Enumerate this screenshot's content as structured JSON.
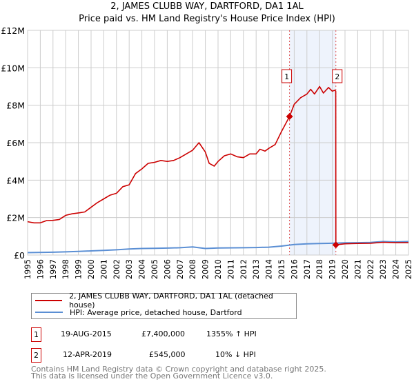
{
  "title": "2, JAMES CLUBB WAY, DARTFORD, DA1 1AL",
  "subtitle": "Price paid vs. HM Land Registry's House Price Index (HPI)",
  "chart_data": {
    "type": "line",
    "title": "2, JAMES CLUBB WAY, DARTFORD, DA1 1AL",
    "subtitle": "Price paid vs. HM Land Registry's House Price Index (HPI)",
    "xlim": [
      1995,
      2025
    ],
    "ylim": [
      0,
      12000000
    ],
    "ytick_values": [
      0,
      2000000,
      4000000,
      6000000,
      8000000,
      10000000,
      12000000
    ],
    "ytick_labels": [
      "£0",
      "£2M",
      "£4M",
      "£6M",
      "£8M",
      "£10M",
      "£12M"
    ],
    "xtick_labels": [
      "1995",
      "1996",
      "1997",
      "1998",
      "1999",
      "2000",
      "2001",
      "2002",
      "2003",
      "2004",
      "2005",
      "2006",
      "2007",
      "2008",
      "2009",
      "2010",
      "2011",
      "2012",
      "2013",
      "2014",
      "2015",
      "2016",
      "2017",
      "2018",
      "2019",
      "2020",
      "2021",
      "2022",
      "2023",
      "2024",
      "2025"
    ],
    "grid": true,
    "legend_placement": "below",
    "shaded_range": [
      2015.63,
      2019.28
    ],
    "series": [
      {
        "name": "2, JAMES CLUBB WAY, DARTFORD, DA1 1AL (detached house)",
        "color": "#cc0000",
        "x": [
          1995,
          1995.5,
          1996,
          1996.5,
          1997,
          1997.5,
          1998,
          1998.5,
          1999,
          1999.5,
          2000,
          2000.5,
          2001,
          2001.5,
          2002,
          2002.5,
          2003,
          2003.5,
          2004,
          2004.5,
          2005,
          2005.5,
          2006,
          2006.5,
          2007,
          2007.5,
          2008,
          2008.5,
          2009,
          2009.3,
          2009.7,
          2010,
          2010.5,
          2011,
          2011.5,
          2012,
          2012.5,
          2013,
          2013.3,
          2013.7,
          2014,
          2014.5,
          2015,
          2015.63,
          2016,
          2016.5,
          2017,
          2017.3,
          2017.6,
          2018,
          2018.3,
          2018.7,
          2019,
          2019.2,
          2019.27,
          2019.28,
          2020,
          2021,
          2022,
          2023,
          2024,
          2025
        ],
        "y": [
          1780000,
          1720000,
          1720000,
          1840000,
          1850000,
          1900000,
          2120000,
          2200000,
          2250000,
          2300000,
          2550000,
          2800000,
          3000000,
          3200000,
          3300000,
          3650000,
          3750000,
          4350000,
          4600000,
          4900000,
          4950000,
          5050000,
          5000000,
          5050000,
          5200000,
          5400000,
          5600000,
          6000000,
          5500000,
          4900000,
          4750000,
          5000000,
          5300000,
          5400000,
          5250000,
          5200000,
          5400000,
          5400000,
          5650000,
          5550000,
          5700000,
          5900000,
          6600000,
          7400000,
          8050000,
          8400000,
          8600000,
          8850000,
          8600000,
          9000000,
          8650000,
          8950000,
          8750000,
          8800000,
          8750000,
          545000,
          600000,
          620000,
          630000,
          680000,
          660000,
          660000
        ]
      },
      {
        "name": "HPI: Average price, detached house, Dartford",
        "color": "#5b8fd4",
        "x": [
          1995,
          1997,
          1998,
          1999,
          2000,
          2001,
          2002,
          2003,
          2004,
          2005,
          2006,
          2007,
          2008,
          2009,
          2010,
          2012,
          2013,
          2014,
          2015,
          2016,
          2017,
          2018,
          2019,
          2020,
          2021,
          2022,
          2023,
          2024,
          2025
        ],
        "y": [
          130000,
          150000,
          170000,
          190000,
          220000,
          250000,
          280000,
          320000,
          350000,
          360000,
          370000,
          390000,
          430000,
          350000,
          380000,
          390000,
          400000,
          420000,
          480000,
          560000,
          600000,
          620000,
          630000,
          650000,
          660000,
          670000,
          720000,
          700000,
          720000
        ]
      }
    ],
    "annotations": [
      {
        "label": "1",
        "x": 2015.63,
        "y": 7400000
      },
      {
        "label": "2",
        "x": 2019.28,
        "y": 545000
      }
    ]
  },
  "legend": {
    "items": [
      {
        "label": "2, JAMES CLUBB WAY, DARTFORD, DA1 1AL (detached house)",
        "color": "#cc0000"
      },
      {
        "label": "HPI: Average price, detached house, Dartford",
        "color": "#5b8fd4"
      }
    ]
  },
  "transactions": [
    {
      "num": "1",
      "date": "19-AUG-2015",
      "price": "£7,400,000",
      "hpi": "1355% ↑ HPI"
    },
    {
      "num": "2",
      "date": "12-APR-2019",
      "price": "£545,000",
      "hpi": "10% ↓ HPI"
    }
  ],
  "footer": {
    "line1": "Contains HM Land Registry data © Crown copyright and database right 2025.",
    "line2": "This data is licensed under the Open Government Licence v3.0."
  }
}
